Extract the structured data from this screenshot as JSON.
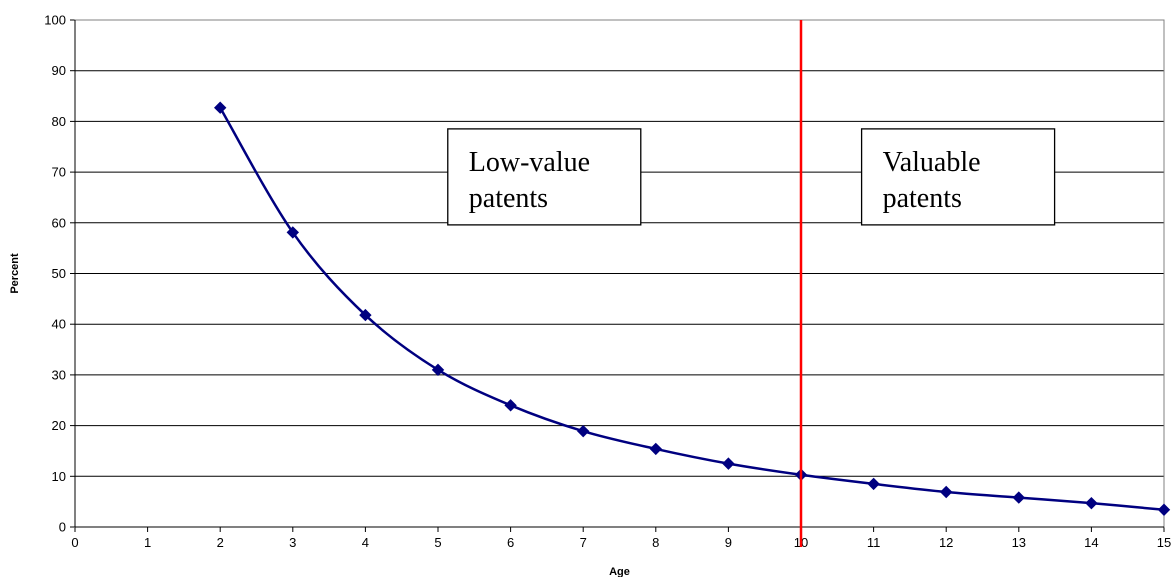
{
  "chart_data": {
    "type": "line",
    "title": "",
    "xlabel": "Age",
    "ylabel": "Percent",
    "xlim": [
      0,
      15
    ],
    "ylim": [
      0,
      100
    ],
    "xticks": [
      "0",
      "1",
      "2",
      "3",
      "4",
      "5",
      "6",
      "7",
      "8",
      "9",
      "10",
      "11",
      "12",
      "13",
      "14",
      "15"
    ],
    "yticks": [
      "0",
      "10",
      "20",
      "30",
      "40",
      "50",
      "60",
      "70",
      "80",
      "90",
      "100"
    ],
    "grid": "horizontal",
    "legend": "none",
    "series": [
      {
        "color": "#000080",
        "marker": "diamond",
        "smooth": true,
        "x": [
          2,
          3,
          4,
          5,
          6,
          7,
          8,
          9,
          10,
          11,
          12,
          13,
          14,
          15
        ],
        "y": [
          82.7,
          58.1,
          41.8,
          31.0,
          24.0,
          18.9,
          15.4,
          12.5,
          10.3,
          8.5,
          6.9,
          5.8,
          4.7,
          3.4
        ]
      }
    ],
    "reference_line": {
      "axis": "x",
      "value": 10,
      "color": "#ff0000"
    },
    "annotations": [
      {
        "lines": [
          "Low-value",
          "patents"
        ],
        "anchor_x": 5.3,
        "anchor_y": 73
      },
      {
        "lines": [
          "Valuable",
          "patents"
        ],
        "anchor_x": 11.0,
        "anchor_y": 73
      }
    ]
  }
}
